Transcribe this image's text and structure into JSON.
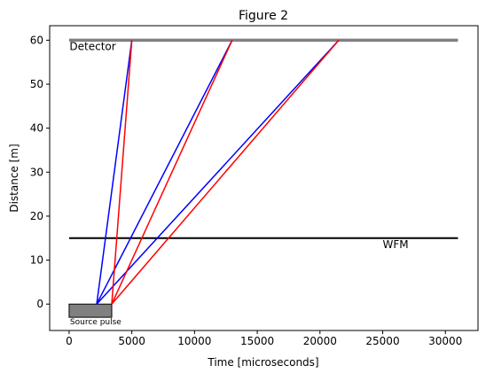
{
  "window": {
    "title": "Figure 2"
  },
  "chart_data": {
    "type": "line",
    "title": "Figure 2",
    "xlabel": "Time [microseconds]",
    "ylabel": "Distance [m]",
    "xlim": [
      -1550,
      32600
    ],
    "ylim": [
      -6,
      63.3
    ],
    "xticks": [
      0,
      5000,
      10000,
      15000,
      20000,
      25000,
      30000
    ],
    "yticks": [
      0,
      10,
      20,
      30,
      40,
      50,
      60
    ],
    "grid": false,
    "legend": "none",
    "horizontal_lines": [
      {
        "label": "Detector",
        "y": 60,
        "x_range": [
          0,
          31000
        ],
        "color": "#808080",
        "label_position": "left-below"
      },
      {
        "label": "WFM",
        "y": 15,
        "x_range": [
          0,
          31000
        ],
        "color": "#000000",
        "label_position": "right-below"
      }
    ],
    "source_pulse": {
      "label": "Source pulse",
      "x_range": [
        0,
        3400
      ],
      "y_range": [
        -3,
        0
      ],
      "color": "#808080"
    },
    "series": [
      {
        "color": "#0000ff",
        "x": [
          2200,
          5000
        ],
        "y": [
          0,
          60
        ]
      },
      {
        "color": "#0000ff",
        "x": [
          2200,
          13000
        ],
        "y": [
          0,
          60
        ]
      },
      {
        "color": "#0000ff",
        "x": [
          2200,
          21500
        ],
        "y": [
          0,
          60
        ]
      },
      {
        "color": "#ff0000",
        "x": [
          3400,
          5000
        ],
        "y": [
          0,
          60
        ]
      },
      {
        "color": "#ff0000",
        "x": [
          3400,
          13000
        ],
        "y": [
          0,
          60
        ]
      },
      {
        "color": "#ff0000",
        "x": [
          3400,
          21500
        ],
        "y": [
          0,
          60
        ]
      }
    ]
  }
}
